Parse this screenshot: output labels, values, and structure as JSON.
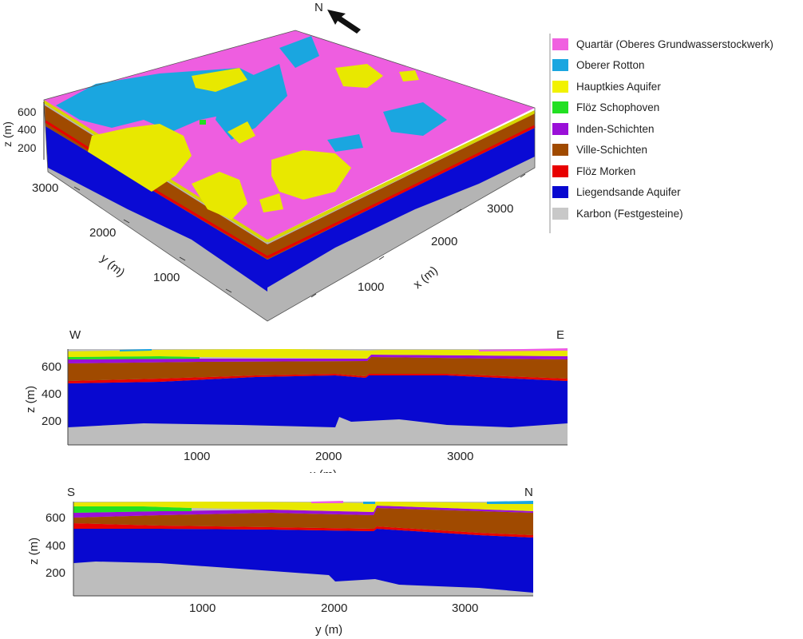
{
  "compass": {
    "north_label": "N"
  },
  "block_view": {
    "z_axis": {
      "label": "z (m)",
      "ticks": [
        "600",
        "400",
        "200"
      ]
    },
    "y_axis": {
      "label": "y (m)",
      "ticks": [
        "3000",
        "2000",
        "1000"
      ]
    },
    "x_axis": {
      "label": "x (m)",
      "ticks": [
        "3000",
        "2000",
        "1000"
      ]
    }
  },
  "legend": {
    "items": [
      {
        "label": "Quartär (Oberes Grundwasserstockwerk)",
        "color": "#f060e0"
      },
      {
        "label": "Oberer Rotton",
        "color": "#1aa6e0"
      },
      {
        "label": "Hauptkies Aquifer",
        "color": "#f2f200"
      },
      {
        "label": "Flöz Schophoven",
        "color": "#22e022"
      },
      {
        "label": "Inden-Schichten",
        "color": "#9a10d8"
      },
      {
        "label": "Ville-Schichten",
        "color": "#a04a00"
      },
      {
        "label": "Flöz Morken",
        "color": "#e80000"
      },
      {
        "label": "Liegendsande Aquifer",
        "color": "#0808d0"
      },
      {
        "label": "Karbon (Festgesteine)",
        "color": "#c8c8c8"
      }
    ]
  },
  "section_we": {
    "left_label": "W",
    "right_label": "E",
    "z_label": "z (m)",
    "z_ticks": [
      "600",
      "400",
      "200"
    ],
    "x_label": "x (m)",
    "x_ticks": [
      "1000",
      "2000",
      "3000"
    ]
  },
  "section_sn": {
    "left_label": "S",
    "right_label": "N",
    "z_label": "z (m)",
    "z_ticks": [
      "600",
      "400",
      "200"
    ],
    "x_label": "y (m)",
    "x_ticks": [
      "1000",
      "2000",
      "3000"
    ]
  }
}
